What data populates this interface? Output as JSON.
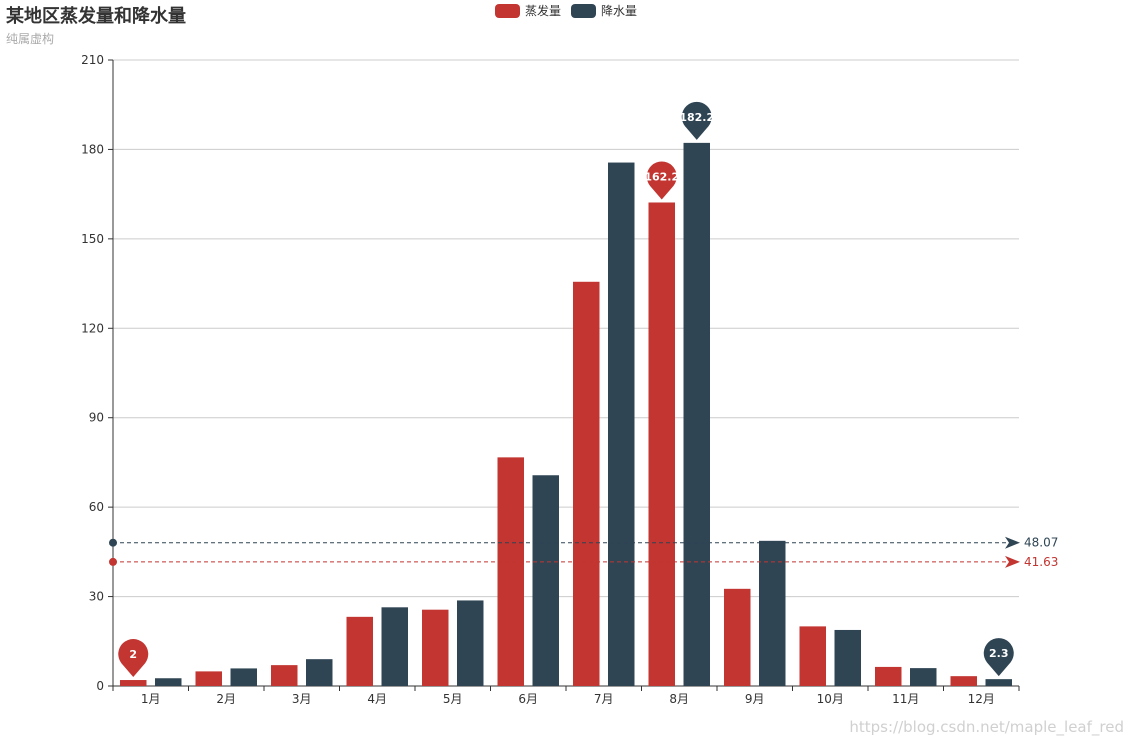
{
  "title": "某地区蒸发量和降水量",
  "subtitle": "纯属虚构",
  "watermark": "https://blog.csdn.net/maple_leaf_red",
  "chart_data": {
    "type": "bar",
    "categories": [
      "1月",
      "2月",
      "3月",
      "4月",
      "5月",
      "6月",
      "7月",
      "8月",
      "9月",
      "10月",
      "11月",
      "12月"
    ],
    "series": [
      {
        "name": "蒸发量",
        "color": "#c23531",
        "values": [
          2.0,
          4.9,
          7.0,
          23.2,
          25.6,
          76.7,
          135.6,
          162.2,
          32.6,
          20.0,
          6.4,
          3.3
        ],
        "mark_points": [
          {
            "label": "2",
            "category": "1月",
            "value": 2.0
          },
          {
            "label": "162.2",
            "category": "8月",
            "value": 162.2
          }
        ],
        "mark_line": {
          "label": "41.63",
          "value": 41.63
        }
      },
      {
        "name": "降水量",
        "color": "#2f4554",
        "values": [
          2.6,
          5.9,
          9.0,
          26.4,
          28.7,
          70.7,
          175.6,
          182.2,
          48.7,
          18.8,
          6.0,
          2.3
        ],
        "mark_points": [
          {
            "label": "182.2",
            "category": "8月",
            "value": 182.2
          },
          {
            "label": "2.3",
            "category": "12月",
            "value": 2.3
          }
        ],
        "mark_line": {
          "label": "48.07",
          "value": 48.07
        }
      }
    ],
    "y_ticks": [
      "0",
      "30",
      "60",
      "90",
      "120",
      "150",
      "180",
      "210"
    ],
    "ylim": [
      0,
      210
    ],
    "grid": true,
    "legend_position": "top-center"
  }
}
